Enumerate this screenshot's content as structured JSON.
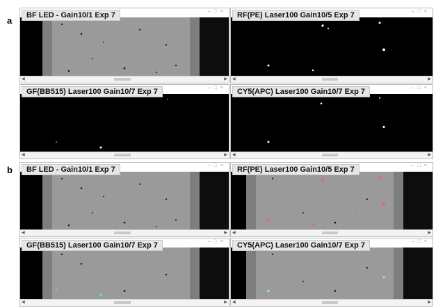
{
  "panel_labels": {
    "a": "a",
    "b": "b"
  },
  "window_controls": {
    "minimize": "–",
    "maximize": "□",
    "close": "×"
  },
  "panels": {
    "a": {
      "bf": {
        "title": "BF LED -  Gain10/1 Exp 7"
      },
      "rf": {
        "title": "RF(PE) Laser100 Gain10/5 Exp 7"
      },
      "gf": {
        "title": "GF(BB515) Laser100 Gain10/7 Exp 7"
      },
      "cy5": {
        "title": "CY5(APC) Laser100 Gain10/7 Exp 7"
      }
    },
    "b": {
      "bf": {
        "title": "BF LED -  Gain10/1 Exp 7"
      },
      "rf": {
        "title": "RF(PE) Laser100 Gain10/5 Exp 7"
      },
      "gf": {
        "title": "GF(BB515) Laser100 Gain10/7 Exp 7"
      },
      "cy5": {
        "title": "CY5(APC) Laser100 Gain10/7 Exp 7"
      }
    }
  },
  "colors": {
    "background": "#000000",
    "bf_channel": "#9a9a9a",
    "rf_overlay": "#ff5a5a",
    "gf_overlay": "#5aff9a",
    "cy5_overlay": "#7fffe0",
    "fluorescent_dot": "#ffffff"
  }
}
